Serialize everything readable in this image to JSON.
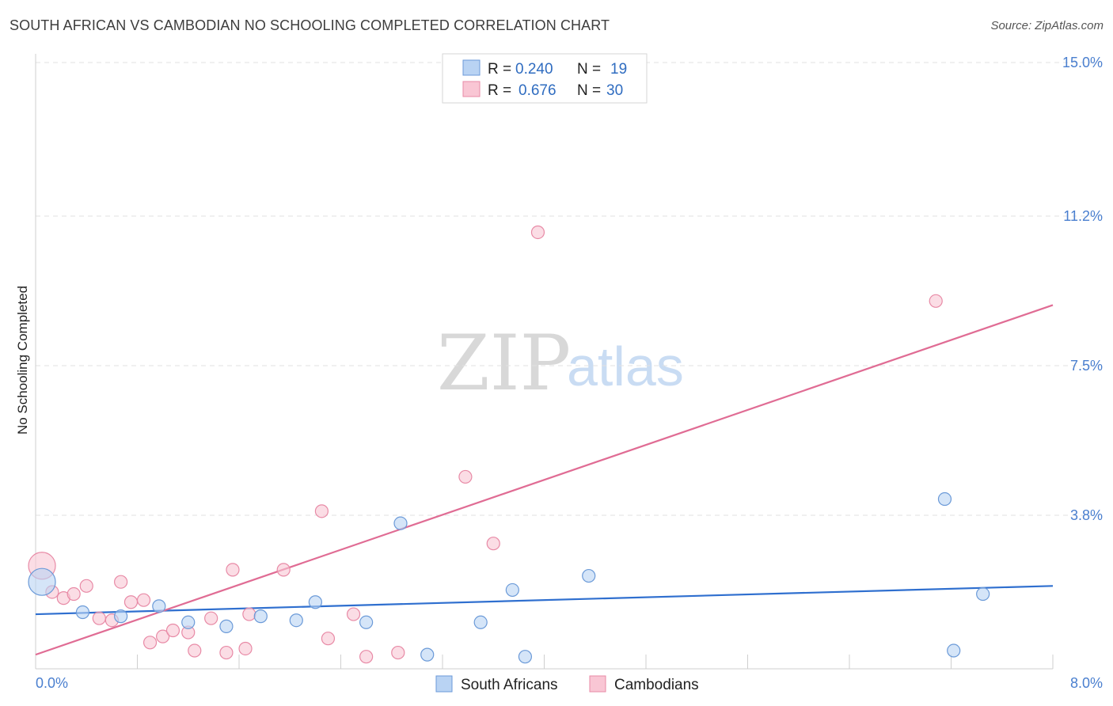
{
  "header": {
    "title": "SOUTH AFRICAN VS CAMBODIAN NO SCHOOLING COMPLETED CORRELATION CHART",
    "source": "Source: ZipAtlas.com"
  },
  "watermark": {
    "zip": "ZIP",
    "atlas": "atlas"
  },
  "legend": {
    "r_label": "R =",
    "n_label": "N =",
    "entries": [
      {
        "name": "South Africans",
        "r": "0.240",
        "n": "19",
        "fill": "#b9d3f3",
        "stroke": "#6b9ad8"
      },
      {
        "name": "Cambodians",
        "r": "0.676",
        "n": "30",
        "fill": "#f9c6d4",
        "stroke": "#e88aa6"
      }
    ]
  },
  "chart_data": {
    "type": "scatter",
    "title": "SOUTH AFRICAN VS CAMBODIAN NO SCHOOLING COMPLETED CORRELATION CHART",
    "xlabel": "",
    "ylabel": "No Schooling Completed",
    "xlim": [
      0,
      8.0
    ],
    "ylim": [
      0,
      15.0
    ],
    "x_tick_labels": [
      "0.0%",
      "8.0%"
    ],
    "y_ticks": [
      3.8,
      7.5,
      11.2,
      15.0
    ],
    "y_tick_labels": [
      "3.8%",
      "7.5%",
      "11.2%",
      "15.0%"
    ],
    "grid": true,
    "series": [
      {
        "name": "South Africans",
        "color": "#2f6fcf",
        "point_fill": "#b9d3f3",
        "point_stroke": "#6b9ad8",
        "trend": {
          "x": [
            0,
            8.0
          ],
          "y": [
            1.35,
            2.05
          ]
        },
        "points": [
          {
            "x": 0.05,
            "y": 2.15,
            "big": true
          },
          {
            "x": 0.37,
            "y": 1.4
          },
          {
            "x": 0.67,
            "y": 1.3
          },
          {
            "x": 0.97,
            "y": 1.55
          },
          {
            "x": 1.2,
            "y": 1.15
          },
          {
            "x": 1.5,
            "y": 1.05
          },
          {
            "x": 1.77,
            "y": 1.3
          },
          {
            "x": 2.05,
            "y": 1.2
          },
          {
            "x": 2.2,
            "y": 1.65
          },
          {
            "x": 2.6,
            "y": 1.15
          },
          {
            "x": 2.87,
            "y": 3.6
          },
          {
            "x": 3.08,
            "y": 0.35
          },
          {
            "x": 3.5,
            "y": 1.15
          },
          {
            "x": 3.75,
            "y": 1.95
          },
          {
            "x": 3.85,
            "y": 0.3
          },
          {
            "x": 4.35,
            "y": 2.3
          },
          {
            "x": 7.15,
            "y": 4.2
          },
          {
            "x": 7.22,
            "y": 0.45
          },
          {
            "x": 7.45,
            "y": 1.85
          }
        ]
      },
      {
        "name": "Cambodians",
        "color": "#e06c94",
        "point_fill": "#f9c6d4",
        "point_stroke": "#e88aa6",
        "trend": {
          "x": [
            0,
            8.0
          ],
          "y": [
            0.35,
            9.0
          ]
        },
        "points": [
          {
            "x": 0.05,
            "y": 2.55,
            "big": true
          },
          {
            "x": 0.13,
            "y": 1.9
          },
          {
            "x": 0.22,
            "y": 1.75
          },
          {
            "x": 0.3,
            "y": 1.85
          },
          {
            "x": 0.4,
            "y": 2.05
          },
          {
            "x": 0.5,
            "y": 1.25
          },
          {
            "x": 0.6,
            "y": 1.2
          },
          {
            "x": 0.67,
            "y": 2.15
          },
          {
            "x": 0.75,
            "y": 1.65
          },
          {
            "x": 0.85,
            "y": 1.7
          },
          {
            "x": 0.9,
            "y": 0.65
          },
          {
            "x": 1.0,
            "y": 0.8
          },
          {
            "x": 1.08,
            "y": 0.95
          },
          {
            "x": 1.2,
            "y": 0.9
          },
          {
            "x": 1.25,
            "y": 0.45
          },
          {
            "x": 1.38,
            "y": 1.25
          },
          {
            "x": 1.5,
            "y": 0.4
          },
          {
            "x": 1.55,
            "y": 2.45
          },
          {
            "x": 1.65,
            "y": 0.5
          },
          {
            "x": 1.68,
            "y": 1.35
          },
          {
            "x": 1.95,
            "y": 2.45
          },
          {
            "x": 2.25,
            "y": 3.9
          },
          {
            "x": 2.3,
            "y": 0.75
          },
          {
            "x": 2.5,
            "y": 1.35
          },
          {
            "x": 2.6,
            "y": 0.3
          },
          {
            "x": 2.85,
            "y": 0.4
          },
          {
            "x": 3.38,
            "y": 4.75
          },
          {
            "x": 3.6,
            "y": 3.1
          },
          {
            "x": 3.95,
            "y": 10.8
          },
          {
            "x": 7.08,
            "y": 9.1
          }
        ]
      }
    ]
  }
}
